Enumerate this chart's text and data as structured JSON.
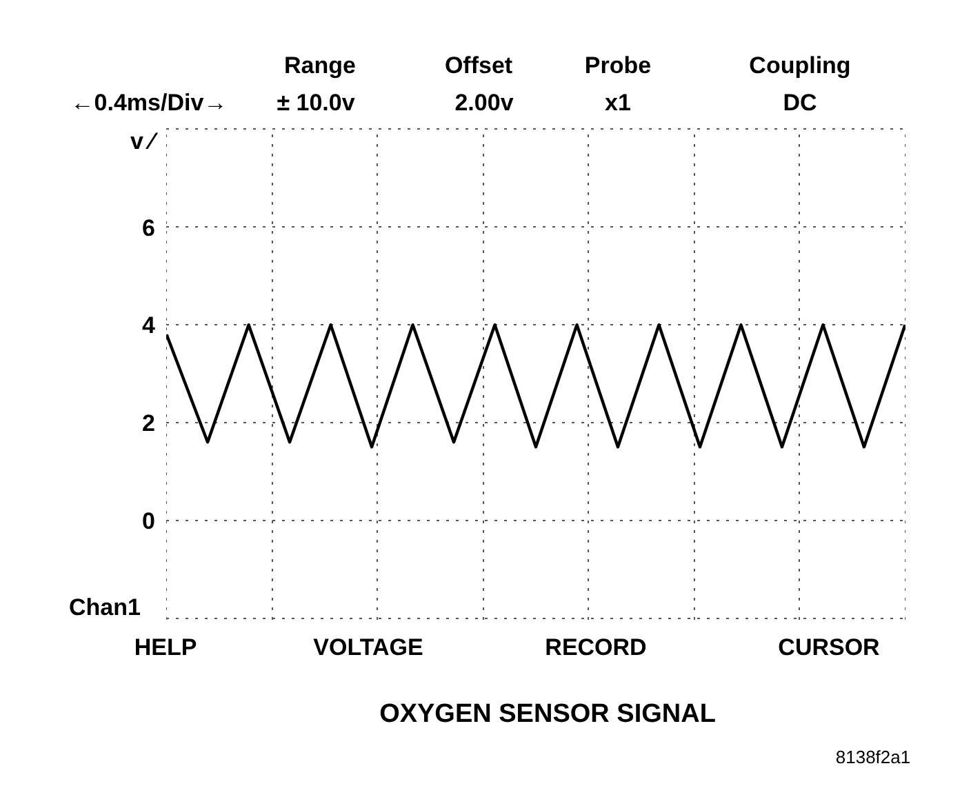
{
  "chart_data": {
    "type": "line",
    "title": "OXYGEN SENSOR SIGNAL",
    "categories": [
      null,
      null,
      null,
      null,
      null,
      null,
      null,
      null,
      null,
      null,
      null,
      null,
      null,
      null,
      null,
      null,
      null,
      null,
      null
    ],
    "series": [
      {
        "color": "#000000",
        "values": [
          3.8,
          1.6,
          4.0,
          1.6,
          4.0,
          1.5,
          4.0,
          1.6,
          4.0,
          1.5,
          4.0,
          1.5,
          4.0,
          1.5,
          4.0,
          1.5,
          4.0,
          1.5,
          4.0
        ]
      }
    ],
    "ylim": [
      -2,
      8
    ],
    "yticks": [
      {
        "value": -2,
        "label": null
      },
      0,
      2,
      4,
      6,
      {
        "value": 8,
        "label": null
      }
    ],
    "tick_labels": "y",
    "grid": true,
    "line_style": "solid",
    "marker": "none",
    "annotations": [
      "Range",
      "Offset",
      "Probe",
      "Coupling",
      "←0.4ms/Div→",
      "± 10.0v",
      "2.00v",
      "x1",
      "DC",
      "HELP",
      "VOLTAGE",
      "RECORD",
      "CURSOR",
      "v ⁄",
      "Chan1",
      "8138f2a1"
    ]
  }
}
